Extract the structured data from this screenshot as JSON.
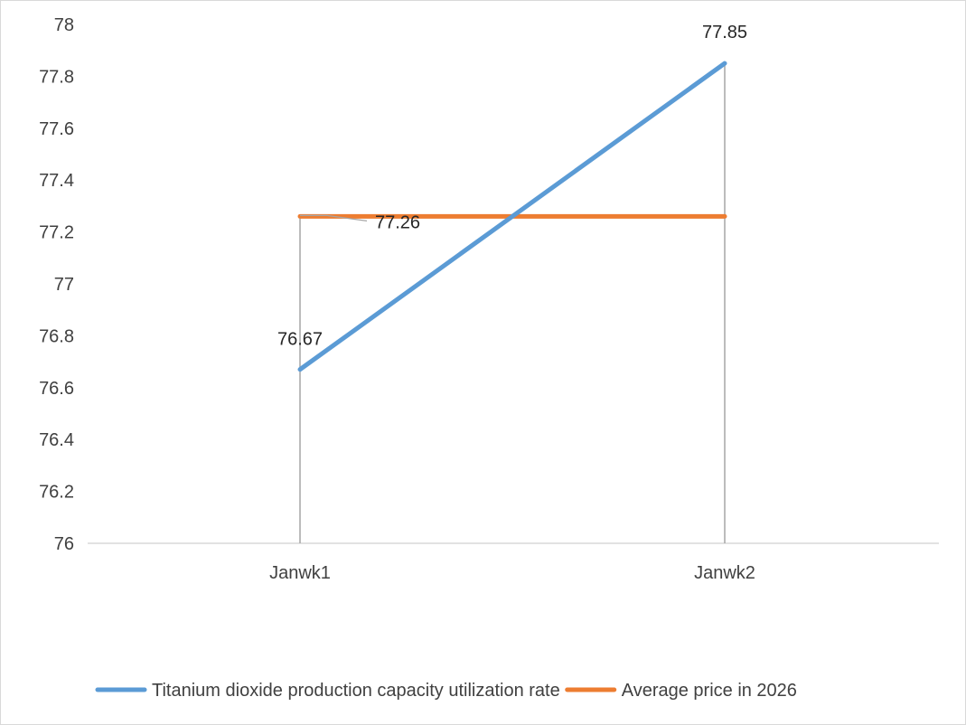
{
  "chart_data": {
    "type": "line",
    "categories": [
      "Janwk1",
      "Janwk2"
    ],
    "ylim": [
      76,
      78
    ],
    "yticks": [
      "76",
      "76.2",
      "76.4",
      "76.6",
      "76.8",
      "77",
      "77.2",
      "77.4",
      "77.6",
      "77.8",
      "78"
    ],
    "ytick_step": 0.2,
    "grid": false,
    "drop_lines": true,
    "legend_position": "bottom",
    "series": [
      {
        "name": "Titanium dioxide production capacity utilization rate",
        "values": [
          76.67,
          77.85
        ],
        "data_labels": [
          "76.67",
          "77.85"
        ],
        "color": "#5b9bd5"
      },
      {
        "name": "Average price in 2026",
        "values": [
          77.26,
          77.26
        ],
        "data_labels": [
          "77.26",
          ""
        ],
        "color": "#ed7d31"
      }
    ]
  }
}
